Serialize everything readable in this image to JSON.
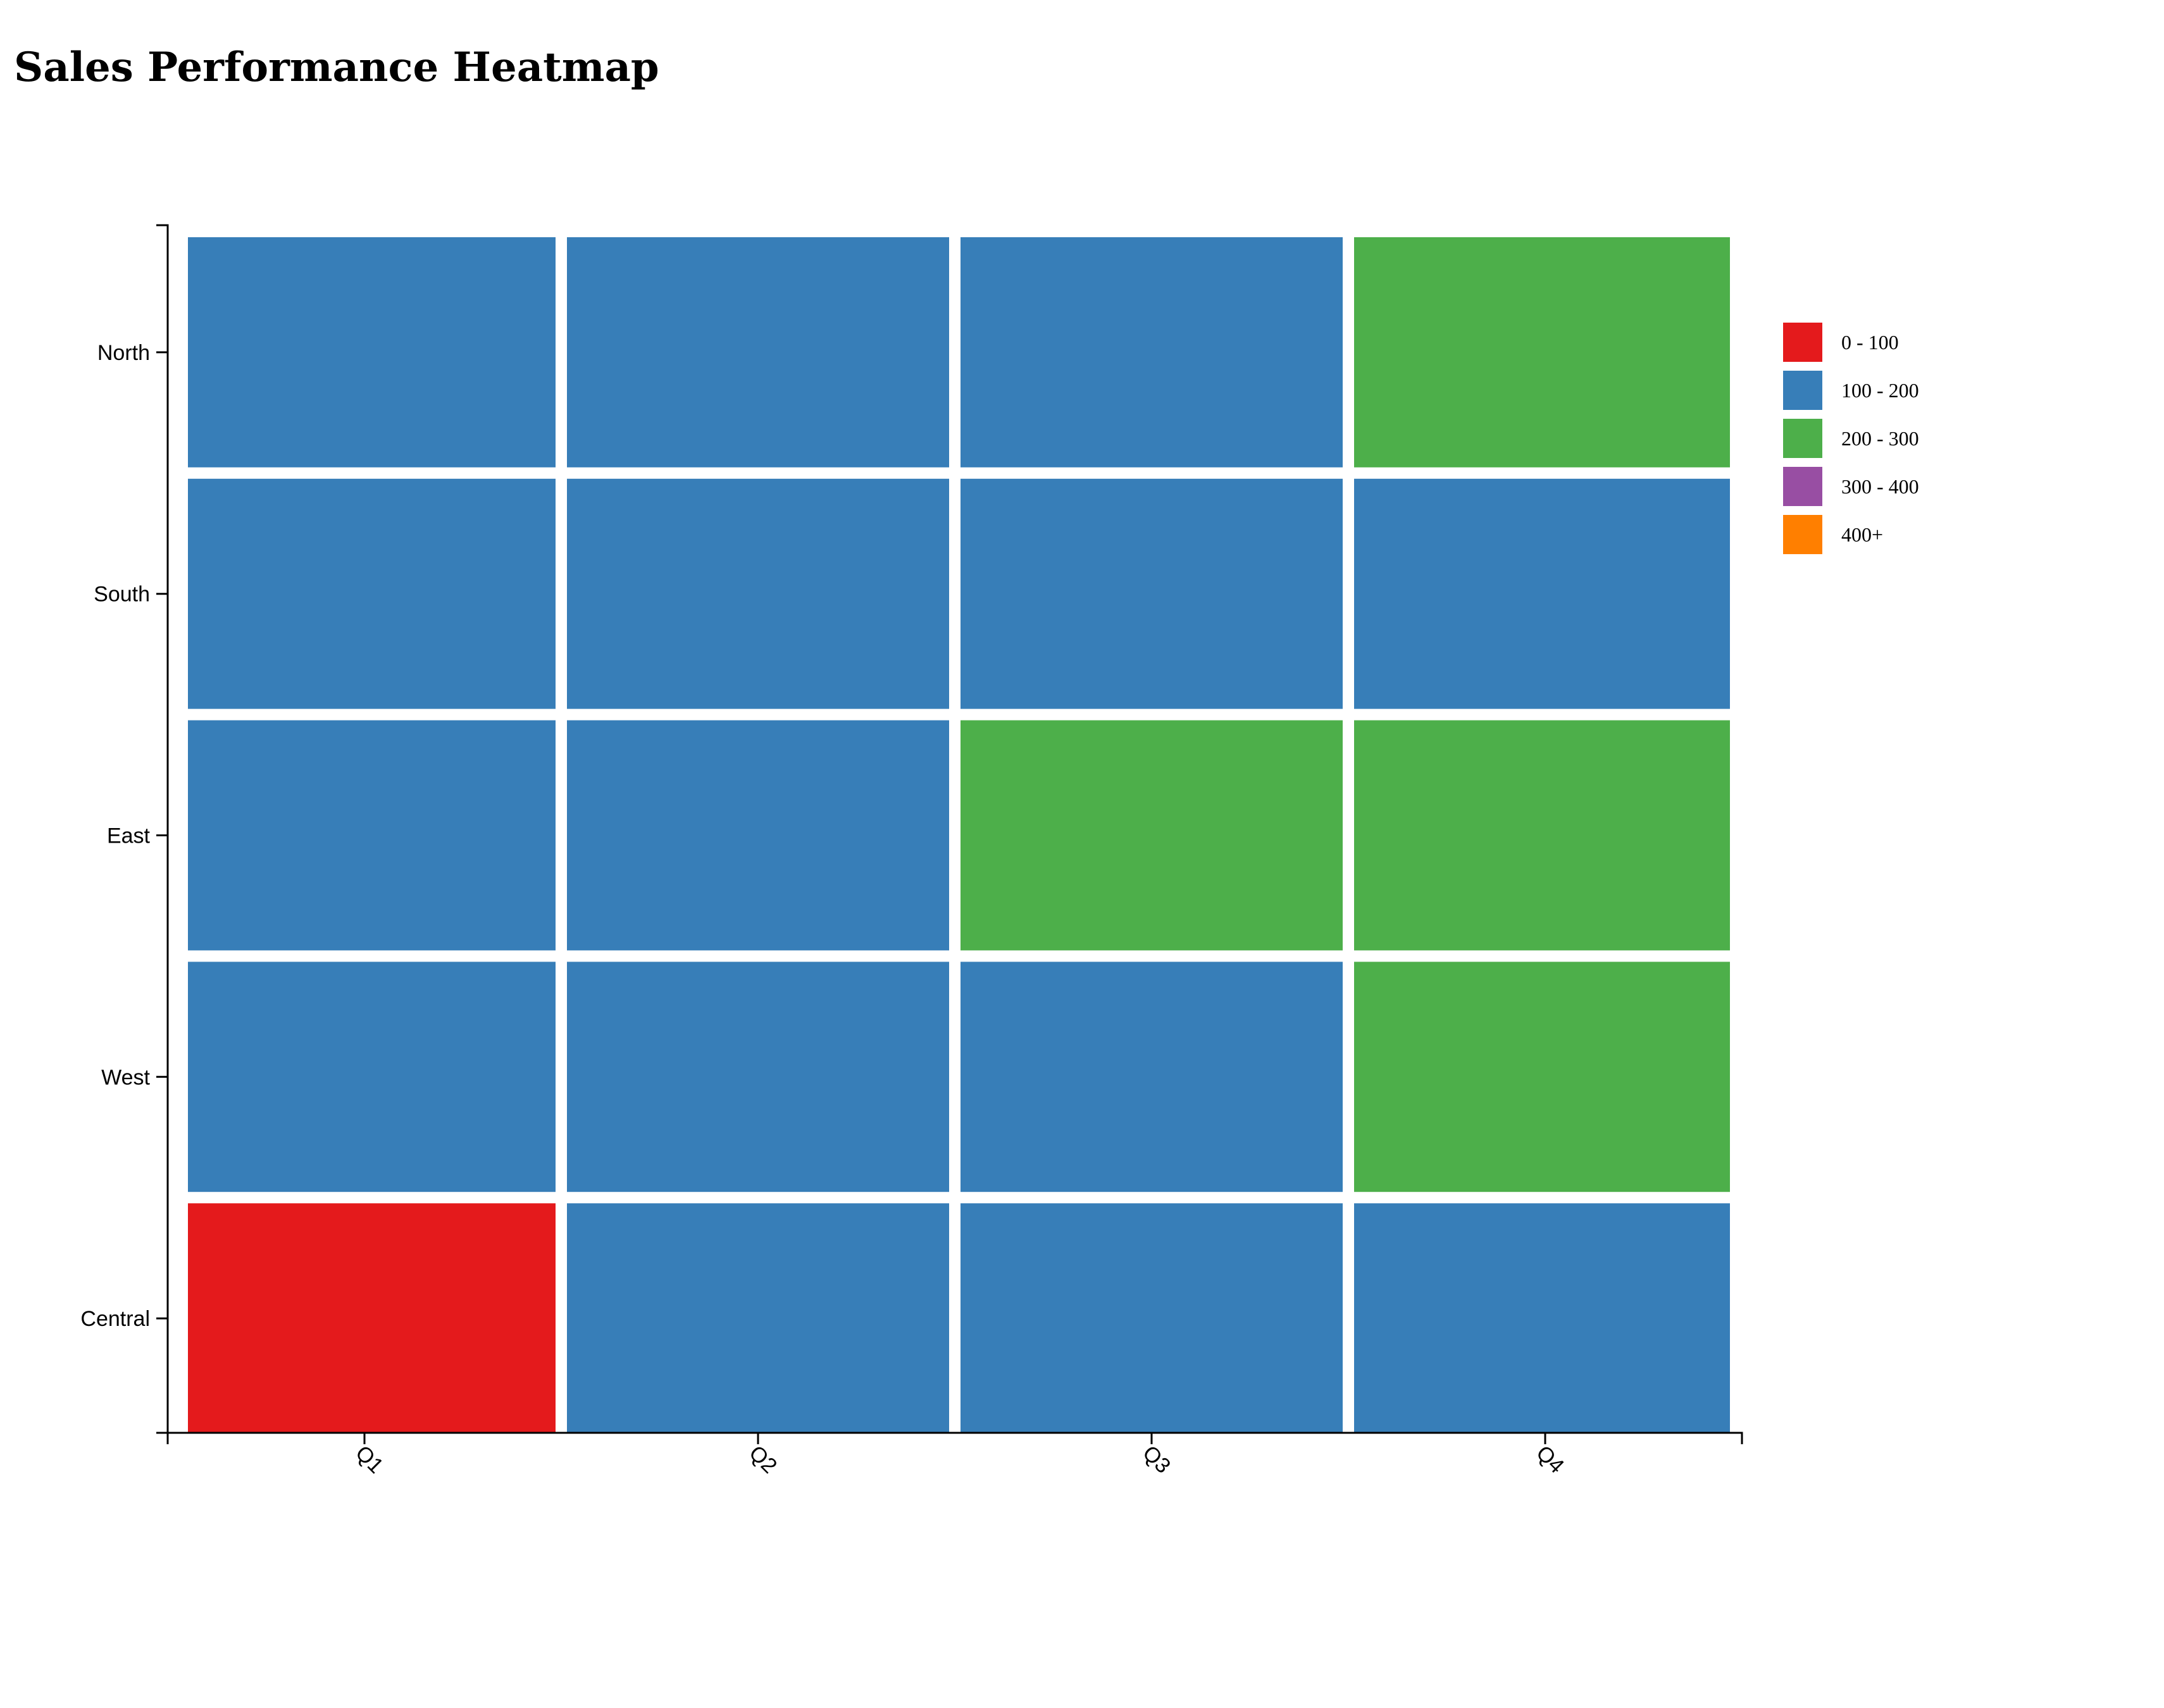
{
  "chart_data": {
    "type": "heatmap",
    "title": "Sales Performance Heatmap",
    "x_categories": [
      "Q1",
      "Q2",
      "Q3",
      "Q4"
    ],
    "y_categories": [
      "North",
      "South",
      "East",
      "West",
      "Central"
    ],
    "cells": [
      {
        "row": "North",
        "col": "Q1",
        "bin": "100 - 200"
      },
      {
        "row": "North",
        "col": "Q2",
        "bin": "100 - 200"
      },
      {
        "row": "North",
        "col": "Q3",
        "bin": "100 - 200"
      },
      {
        "row": "North",
        "col": "Q4",
        "bin": "200 - 300"
      },
      {
        "row": "South",
        "col": "Q1",
        "bin": "100 - 200"
      },
      {
        "row": "South",
        "col": "Q2",
        "bin": "100 - 200"
      },
      {
        "row": "South",
        "col": "Q3",
        "bin": "100 - 200"
      },
      {
        "row": "South",
        "col": "Q4",
        "bin": "100 - 200"
      },
      {
        "row": "East",
        "col": "Q1",
        "bin": "100 - 200"
      },
      {
        "row": "East",
        "col": "Q2",
        "bin": "100 - 200"
      },
      {
        "row": "East",
        "col": "Q3",
        "bin": "200 - 300"
      },
      {
        "row": "East",
        "col": "Q4",
        "bin": "200 - 300"
      },
      {
        "row": "West",
        "col": "Q1",
        "bin": "100 - 200"
      },
      {
        "row": "West",
        "col": "Q2",
        "bin": "100 - 200"
      },
      {
        "row": "West",
        "col": "Q3",
        "bin": "100 - 200"
      },
      {
        "row": "West",
        "col": "Q4",
        "bin": "200 - 300"
      },
      {
        "row": "Central",
        "col": "Q1",
        "bin": "0 - 100"
      },
      {
        "row": "Central",
        "col": "Q2",
        "bin": "100 - 200"
      },
      {
        "row": "Central",
        "col": "Q3",
        "bin": "100 - 200"
      },
      {
        "row": "Central",
        "col": "Q4",
        "bin": "100 - 200"
      }
    ],
    "legend": [
      {
        "label": "0 - 100",
        "color": "#e41a1c"
      },
      {
        "label": "100 - 200",
        "color": "#377eb8"
      },
      {
        "label": "200 - 300",
        "color": "#4daf4a"
      },
      {
        "label": "300 - 400",
        "color": "#984ea3"
      },
      {
        "label": "400+",
        "color": "#ff7f00"
      }
    ],
    "legend_position": "top-right",
    "grid": false
  }
}
